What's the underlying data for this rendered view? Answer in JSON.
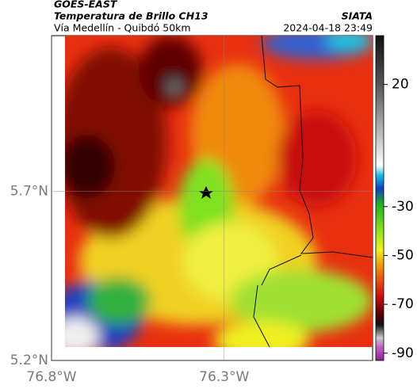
{
  "header": {
    "title": "GOES-EAST",
    "subtitle": "Temperatura de Brillo CH13",
    "region": "Vía Medellín - Quibdó 50km",
    "source": "SIATA",
    "timestamp": "2024-04-18 23:49"
  },
  "map": {
    "xlim": [
      -76.8,
      -75.87
    ],
    "ylim": [
      5.2,
      6.16
    ],
    "xticks": [
      {
        "value": -76.8,
        "label": "76.8°W"
      },
      {
        "value": -76.3,
        "label": "76.3°W"
      }
    ],
    "yticks": [
      {
        "value": 5.2,
        "label": "5.2°N"
      },
      {
        "value": 5.7,
        "label": "5.7°N"
      }
    ]
  },
  "colorbar": {
    "lim": [
      -93,
      40
    ],
    "ticks": [
      20,
      -30,
      -50,
      -70,
      -90
    ]
  }
}
